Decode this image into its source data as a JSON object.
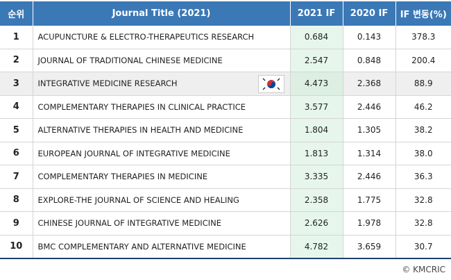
{
  "table": {
    "header": [
      "순위",
      "Journal Title (2021)",
      "2021 IF",
      "2020 IF",
      "IF 변동(%)"
    ],
    "rows": [
      [
        "1",
        "ACUPUNCTURE & ELECTRO-THERAPEUTICS RESEARCH",
        "0.684",
        "0.143",
        "378.3"
      ],
      [
        "2",
        "JOURNAL OF TRADITIONAL CHINESE MEDICINE",
        "2.547",
        "0.848",
        "200.4"
      ],
      [
        "3",
        "INTEGRATIVE MEDICINE RESEARCH",
        "4.473",
        "2.368",
        "88.9"
      ],
      [
        "4",
        "COMPLEMENTARY THERAPIES IN CLINICAL PRACTICE",
        "3.577",
        "2.446",
        "46.2"
      ],
      [
        "5",
        "ALTERNATIVE THERAPIES IN HEALTH AND MEDICINE",
        "1.804",
        "1.305",
        "38.2"
      ],
      [
        "6",
        "EUROPEAN JOURNAL OF INTEGRATIVE MEDICINE",
        "1.813",
        "1.314",
        "38.0"
      ],
      [
        "7",
        "COMPLEMENTARY THERAPIES IN MEDICINE",
        "3.335",
        "2.446",
        "36.3"
      ],
      [
        "8",
        "EXPLORE-THE JOURNAL OF SCIENCE AND HEALING",
        "2.358",
        "1.775",
        "32.8"
      ],
      [
        "9",
        "CHINESE JOURNAL OF INTEGRATIVE MEDICINE",
        "2.626",
        "1.978",
        "32.8"
      ],
      [
        "10",
        "BMC COMPLEMENTARY AND ALTERNATIVE MEDICINE",
        "4.782",
        "3.659",
        "30.7"
      ]
    ]
  },
  "footer": "© KMCRIC"
}
